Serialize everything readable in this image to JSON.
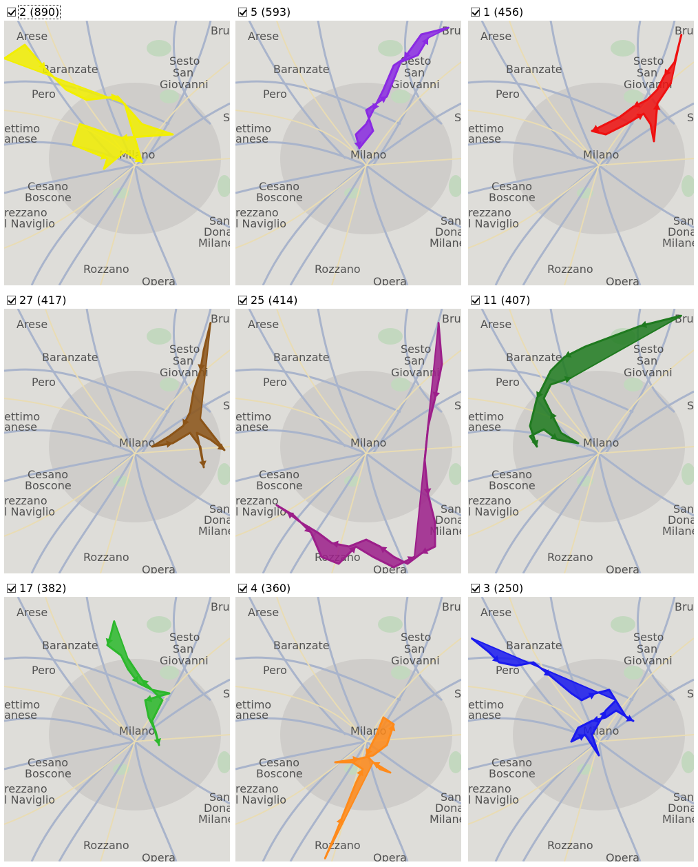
{
  "map_places": {
    "arese": "Arese",
    "baranzate": "Baranzate",
    "sesto1": "Sesto",
    "sesto2": "San",
    "sesto3": "Giovanni",
    "pero": "Pero",
    "settimo1": "ettimo",
    "settimo2": "anese",
    "milano": "Milano",
    "cesano1": "Cesano",
    "cesano2": "Boscone",
    "naviglio1": "rezzano",
    "naviglio2": "l Naviglio",
    "donato1": "San",
    "donato2": "Dona",
    "donato3": "Milane",
    "rozzano": "Rozzano",
    "opera": "Opera",
    "bru": "Bru",
    "s_edge": "S"
  },
  "panels": [
    {
      "label": "2 (890)",
      "checked": true,
      "focused": true,
      "color": "#f2ef00",
      "path": [
        [
          0,
          55
        ],
        [
          30,
          35
        ],
        [
          60,
          70
        ],
        [
          90,
          100
        ],
        [
          120,
          115
        ],
        [
          165,
          110
        ],
        [
          200,
          150
        ],
        [
          245,
          165
        ],
        [
          170,
          170
        ],
        [
          110,
          150
        ],
        [
          100,
          180
        ],
        [
          150,
          200
        ],
        [
          145,
          215
        ],
        [
          175,
          190
        ],
        [
          200,
          205
        ],
        [
          175,
          120
        ]
      ]
    },
    {
      "label": "5 (593)",
      "checked": true,
      "focused": false,
      "color": "#8a2be2",
      "path": [
        [
          310,
          10
        ],
        [
          270,
          20
        ],
        [
          245,
          55
        ],
        [
          230,
          65
        ],
        [
          215,
          100
        ],
        [
          200,
          130
        ],
        [
          190,
          150
        ],
        [
          175,
          165
        ],
        [
          180,
          185
        ],
        [
          200,
          160
        ],
        [
          190,
          130
        ],
        [
          220,
          110
        ],
        [
          240,
          60
        ],
        [
          265,
          50
        ],
        [
          280,
          25
        ]
      ]
    },
    {
      "label": "1 (456)",
      "checked": true,
      "focused": false,
      "color": "#ee1111",
      "path": [
        [
          310,
          20
        ],
        [
          300,
          60
        ],
        [
          285,
          80
        ],
        [
          275,
          100
        ],
        [
          260,
          115
        ],
        [
          240,
          125
        ],
        [
          220,
          140
        ],
        [
          200,
          150
        ],
        [
          180,
          160
        ],
        [
          200,
          165
        ],
        [
          230,
          150
        ],
        [
          255,
          135
        ],
        [
          265,
          150
        ],
        [
          270,
          175
        ],
        [
          275,
          120
        ],
        [
          295,
          90
        ]
      ]
    },
    {
      "label": "27 (417)",
      "checked": true,
      "focused": false,
      "color": "#8b5418",
      "path": [
        [
          300,
          20
        ],
        [
          290,
          60
        ],
        [
          285,
          90
        ],
        [
          275,
          120
        ],
        [
          270,
          150
        ],
        [
          260,
          170
        ],
        [
          240,
          185
        ],
        [
          215,
          200
        ],
        [
          245,
          195
        ],
        [
          270,
          180
        ],
        [
          285,
          200
        ],
        [
          290,
          230
        ],
        [
          280,
          180
        ],
        [
          300,
          190
        ],
        [
          320,
          205
        ],
        [
          285,
          160
        ]
      ]
    },
    {
      "label": "25 (414)",
      "checked": true,
      "focused": false,
      "color": "#9c1f8a",
      "path": [
        [
          295,
          20
        ],
        [
          300,
          80
        ],
        [
          290,
          130
        ],
        [
          280,
          170
        ],
        [
          275,
          220
        ],
        [
          280,
          270
        ],
        [
          290,
          310
        ],
        [
          290,
          345
        ],
        [
          270,
          355
        ],
        [
          250,
          370
        ],
        [
          230,
          360
        ],
        [
          210,
          345
        ],
        [
          190,
          335
        ],
        [
          165,
          345
        ],
        [
          140,
          340
        ],
        [
          120,
          325
        ],
        [
          95,
          310
        ],
        [
          75,
          295
        ],
        [
          60,
          285
        ],
        [
          85,
          300
        ],
        [
          110,
          325
        ],
        [
          125,
          360
        ],
        [
          150,
          370
        ],
        [
          175,
          345
        ],
        [
          200,
          360
        ],
        [
          230,
          375
        ],
        [
          260,
          360
        ]
      ]
    },
    {
      "label": "11 (407)",
      "checked": true,
      "focused": false,
      "color": "#1f7a1f",
      "path": [
        [
          310,
          10
        ],
        [
          290,
          15
        ],
        [
          250,
          25
        ],
        [
          210,
          40
        ],
        [
          170,
          55
        ],
        [
          140,
          70
        ],
        [
          120,
          90
        ],
        [
          110,
          110
        ],
        [
          100,
          130
        ],
        [
          95,
          150
        ],
        [
          90,
          170
        ],
        [
          100,
          200
        ],
        [
          90,
          185
        ],
        [
          110,
          175
        ],
        [
          130,
          190
        ],
        [
          160,
          195
        ],
        [
          135,
          180
        ],
        [
          120,
          150
        ],
        [
          110,
          130
        ],
        [
          120,
          110
        ],
        [
          150,
          100
        ]
      ]
    },
    {
      "label": "17 (382)",
      "checked": true,
      "focused": false,
      "color": "#2cb82c",
      "path": [
        [
          160,
          35
        ],
        [
          155,
          55
        ],
        [
          150,
          70
        ],
        [
          170,
          85
        ],
        [
          180,
          105
        ],
        [
          195,
          125
        ],
        [
          215,
          135
        ],
        [
          240,
          140
        ],
        [
          205,
          150
        ],
        [
          210,
          175
        ],
        [
          220,
          195
        ],
        [
          225,
          215
        ],
        [
          215,
          180
        ],
        [
          230,
          150
        ],
        [
          200,
          120
        ],
        [
          180,
          90
        ]
      ]
    },
    {
      "label": "4 (360)",
      "checked": true,
      "focused": false,
      "color": "#ff8a1a",
      "path": [
        [
          130,
          380
        ],
        [
          145,
          345
        ],
        [
          155,
          320
        ],
        [
          165,
          295
        ],
        [
          175,
          270
        ],
        [
          185,
          250
        ],
        [
          170,
          240
        ],
        [
          145,
          240
        ],
        [
          180,
          235
        ],
        [
          200,
          230
        ],
        [
          220,
          215
        ],
        [
          230,
          185
        ],
        [
          215,
          175
        ],
        [
          205,
          200
        ],
        [
          190,
          230
        ],
        [
          210,
          250
        ],
        [
          225,
          255
        ],
        [
          200,
          240
        ]
      ]
    },
    {
      "label": "3 (250)",
      "checked": true,
      "focused": false,
      "color": "#1a1aee",
      "path": [
        [
          5,
          60
        ],
        [
          30,
          80
        ],
        [
          45,
          95
        ],
        [
          70,
          100
        ],
        [
          95,
          95
        ],
        [
          120,
          115
        ],
        [
          150,
          140
        ],
        [
          165,
          150
        ],
        [
          185,
          140
        ],
        [
          205,
          135
        ],
        [
          230,
          175
        ],
        [
          240,
          180
        ],
        [
          215,
          165
        ],
        [
          200,
          175
        ],
        [
          180,
          180
        ],
        [
          160,
          190
        ],
        [
          150,
          210
        ],
        [
          170,
          200
        ],
        [
          190,
          230
        ],
        [
          180,
          200
        ],
        [
          200,
          165
        ],
        [
          215,
          150
        ]
      ]
    }
  ]
}
